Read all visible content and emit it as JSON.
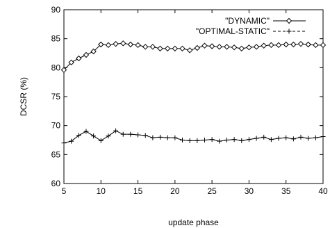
{
  "chart_data": {
    "type": "line",
    "xlabel": "update phase",
    "ylabel": "DCSR (%)",
    "xlim": [
      5,
      40
    ],
    "ylim": [
      60,
      90
    ],
    "xticks": [
      5,
      10,
      15,
      20,
      25,
      30,
      35,
      40
    ],
    "yticks": [
      60,
      65,
      70,
      75,
      80,
      85,
      90
    ],
    "grid": false,
    "legend_position": "top-right",
    "x": [
      5,
      6,
      7,
      8,
      9,
      10,
      11,
      12,
      13,
      14,
      15,
      16,
      17,
      18,
      19,
      20,
      21,
      22,
      23,
      24,
      25,
      26,
      27,
      28,
      29,
      30,
      31,
      32,
      33,
      34,
      35,
      36,
      37,
      38,
      39,
      40
    ],
    "series": [
      {
        "name": "\"DYNAMIC\"",
        "marker": "diamond",
        "values": [
          79.6,
          80.9,
          81.6,
          82.2,
          82.8,
          84.0,
          83.9,
          84.1,
          84.2,
          84.0,
          83.9,
          83.6,
          83.6,
          83.3,
          83.3,
          83.3,
          83.3,
          83.0,
          83.4,
          83.8,
          83.7,
          83.6,
          83.6,
          83.5,
          83.3,
          83.5,
          83.6,
          83.8,
          83.9,
          83.9,
          84.0,
          84.0,
          84.1,
          84.0,
          83.9,
          83.9
        ]
      },
      {
        "name": "\"OPTIMAL-STATIC\"",
        "marker": "plus",
        "values": [
          67.0,
          67.3,
          68.3,
          69.0,
          68.2,
          67.4,
          68.2,
          69.1,
          68.5,
          68.5,
          68.4,
          68.3,
          67.9,
          68.0,
          67.9,
          67.9,
          67.5,
          67.4,
          67.4,
          67.5,
          67.6,
          67.3,
          67.5,
          67.6,
          67.4,
          67.6,
          67.8,
          68.0,
          67.6,
          67.8,
          67.9,
          67.7,
          68.0,
          67.8,
          67.9,
          68.1
        ]
      }
    ]
  }
}
